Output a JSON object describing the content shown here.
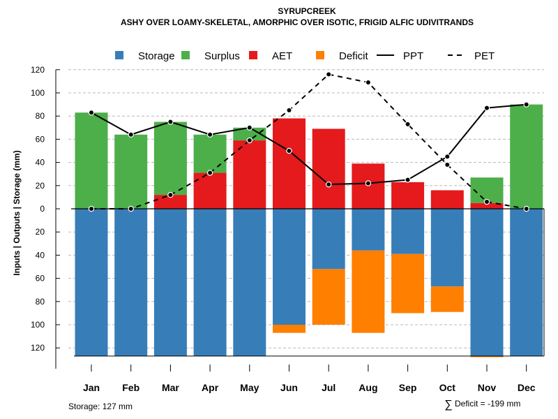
{
  "chart_data": {
    "type": "bar",
    "title": "SYRUPCREEK",
    "subtitle": "ASHY OVER LOAMY-SKELETAL, AMORPHIC OVER ISOTIC, FRIGID ALFIC UDIVITRANDS",
    "ylabel": "Inputs | Outputs | Storage    (mm)",
    "ylim": [
      -127,
      120
    ],
    "y_ticks": [
      120,
      100,
      80,
      60,
      40,
      20,
      0,
      -20,
      -40,
      -60,
      -80,
      -100,
      -120
    ],
    "y_tick_labels": [
      "120",
      "100",
      "80",
      "60",
      "40",
      "20",
      "0",
      "20",
      "40",
      "60",
      "80",
      "100",
      "120"
    ],
    "grid": true,
    "categories": [
      "Jan",
      "Feb",
      "Mar",
      "Apr",
      "May",
      "Jun",
      "Jul",
      "Aug",
      "Sep",
      "Oct",
      "Nov",
      "Dec"
    ],
    "legend": [
      {
        "name": "Storage",
        "color": "#377EB8",
        "kind": "box"
      },
      {
        "name": "Surplus",
        "color": "#4DAF4A",
        "kind": "box"
      },
      {
        "name": "AET",
        "color": "#E41A1C",
        "kind": "box"
      },
      {
        "name": "Deficit",
        "color": "#FF7F00",
        "kind": "box"
      },
      {
        "name": "PPT",
        "color": "#000000",
        "kind": "solid"
      },
      {
        "name": "PET",
        "color": "#000000",
        "kind": "dashed"
      }
    ],
    "series": [
      {
        "name": "AET",
        "color": "#E41A1C",
        "values": [
          0,
          0,
          12,
          31,
          59,
          78,
          69,
          39,
          23,
          16,
          5,
          0
        ]
      },
      {
        "name": "Surplus",
        "color": "#4DAF4A",
        "values": [
          83,
          64,
          63,
          33,
          11,
          0,
          0,
          0,
          0,
          0,
          22,
          90
        ]
      },
      {
        "name": "Storage",
        "color": "#377EB8",
        "values": [
          127,
          127,
          127,
          127,
          127,
          100,
          52,
          36,
          39,
          67,
          127,
          127
        ]
      },
      {
        "name": "Deficit",
        "color": "#FF7F00",
        "values": [
          0,
          0,
          0,
          0,
          0,
          7,
          48,
          71,
          51,
          22,
          1,
          0
        ]
      },
      {
        "name": "PPT",
        "color": "#000000",
        "values": [
          83,
          64,
          75,
          64,
          70,
          50,
          21,
          22,
          25,
          45,
          87,
          90
        ]
      },
      {
        "name": "PET",
        "color": "#000000",
        "values": [
          0,
          0,
          12,
          31,
          59,
          85,
          116,
          109,
          73,
          38,
          6,
          0
        ]
      }
    ],
    "storage_note": "Storage: 127 mm",
    "deficit_symbol": "∑",
    "deficit_note": "Deficit = -199 mm"
  }
}
